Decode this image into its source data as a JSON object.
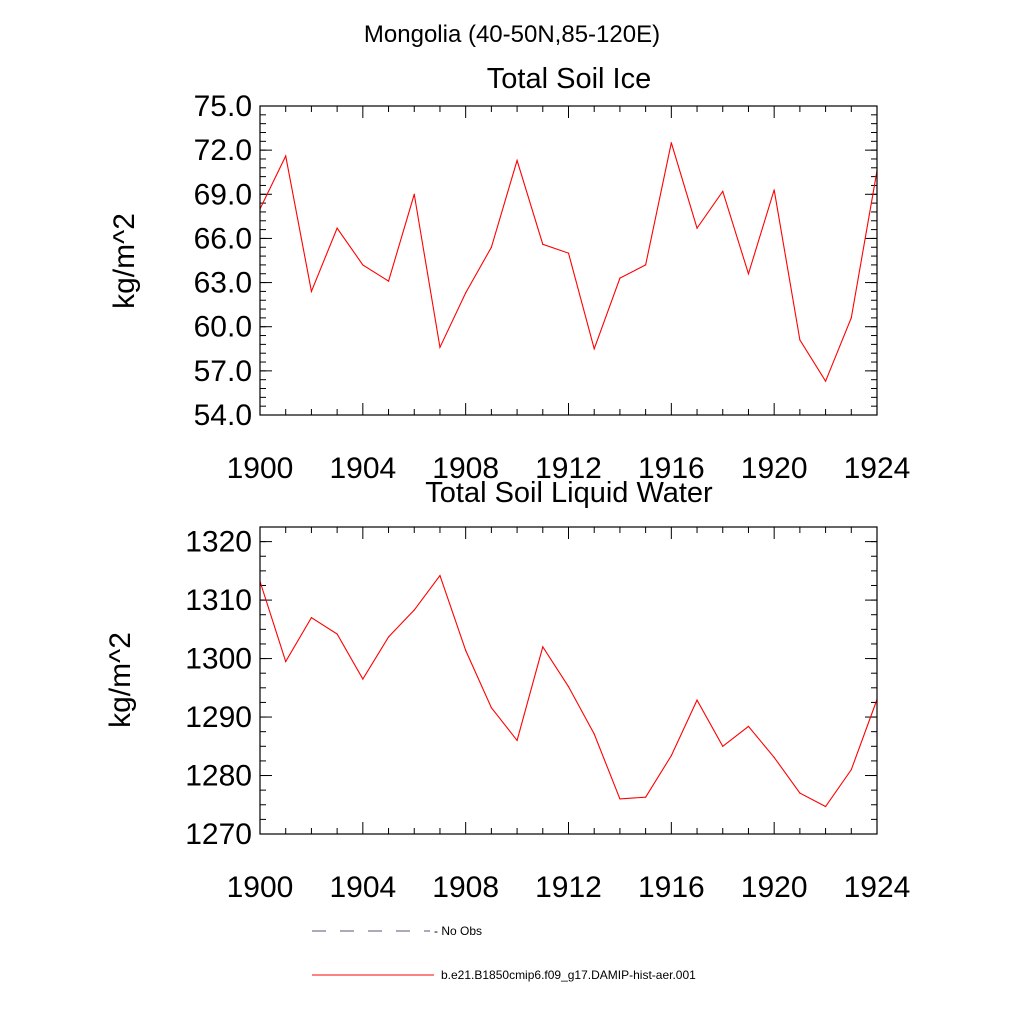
{
  "figure_title": "Mongolia (40-50N,85-120E)",
  "colors": {
    "series": "#ff0000",
    "obs": "#555577",
    "axis": "#000000",
    "background": "#ffffff"
  },
  "legend": [
    {
      "label": "- No Obs",
      "style": "dashed",
      "color": "#555577"
    },
    {
      "label": "b.e21.B1850cmip6.f09_g17.DAMIP-hist-aer.001",
      "style": "solid",
      "color": "#ff0000"
    }
  ],
  "chart_data": [
    {
      "type": "line",
      "title": "Total Soil Ice",
      "xlabel": "",
      "ylabel": "kg/m^2",
      "xlim": [
        1900,
        1924
      ],
      "ylim": [
        54,
        75
      ],
      "x_ticks": [
        "1900",
        "1904",
        "1908",
        "1912",
        "1916",
        "1920",
        "1924"
      ],
      "y_ticks": [
        "54.0",
        "57.0",
        "60.0",
        "63.0",
        "66.0",
        "69.0",
        "72.0",
        "75.0"
      ],
      "grid": false,
      "series": [
        {
          "color": "#ff0000",
          "x": [
            1900,
            1901,
            1902,
            1903,
            1904,
            1905,
            1906,
            1907,
            1908,
            1909,
            1910,
            1911,
            1912,
            1913,
            1914,
            1915,
            1916,
            1917,
            1918,
            1919,
            1920,
            1921,
            1922,
            1923,
            1924
          ],
          "values": [
            68.0,
            71.6,
            62.4,
            66.7,
            64.2,
            63.1,
            69.0,
            58.6,
            62.3,
            65.4,
            71.3,
            65.6,
            65.0,
            58.5,
            63.3,
            64.2,
            72.5,
            66.7,
            69.2,
            63.6,
            69.3,
            59.1,
            56.3,
            60.6,
            70.6
          ]
        }
      ]
    },
    {
      "type": "line",
      "title": "Total Soil Liquid Water",
      "xlabel": "",
      "ylabel": "kg/m^2",
      "xlim": [
        1900,
        1924
      ],
      "ylim": [
        1270,
        1322.5
      ],
      "x_ticks": [
        "1900",
        "1904",
        "1908",
        "1912",
        "1916",
        "1920",
        "1924"
      ],
      "y_ticks": [
        "1270",
        "1280",
        "1290",
        "1300",
        "1310",
        "1320"
      ],
      "grid": false,
      "series": [
        {
          "color": "#ff0000",
          "x": [
            1900,
            1901,
            1902,
            1903,
            1904,
            1905,
            1906,
            1907,
            1908,
            1909,
            1910,
            1911,
            1912,
            1913,
            1914,
            1915,
            1916,
            1917,
            1918,
            1919,
            1920,
            1921,
            1922,
            1923,
            1924
          ],
          "values": [
            1313.2,
            1299.5,
            1307.0,
            1304.2,
            1296.5,
            1303.7,
            1308.3,
            1314.2,
            1301.4,
            1291.6,
            1286.0,
            1302.0,
            1295.2,
            1287.1,
            1276.0,
            1276.3,
            1283.4,
            1292.9,
            1285.0,
            1288.4,
            1283.1,
            1277.0,
            1274.7,
            1281.0,
            1293.0
          ]
        }
      ]
    }
  ]
}
